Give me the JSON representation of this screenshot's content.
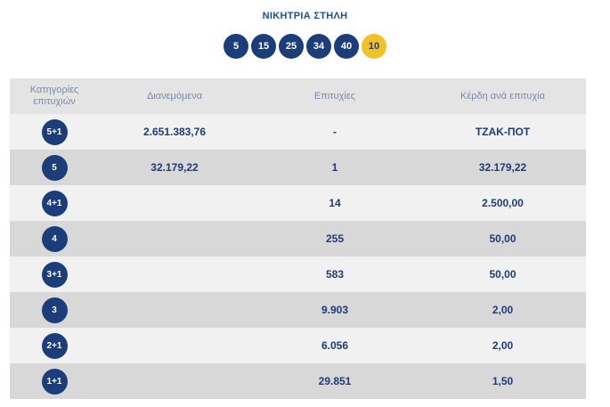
{
  "title": "ΝΙΚΗΤΡΙΑ ΣΤΗΛΗ",
  "balls": [
    "5",
    "15",
    "25",
    "34",
    "40"
  ],
  "bonus_ball": "10",
  "colors": {
    "ball": "#1b3d7a",
    "bonus": "#f2c028",
    "header_bg": "#e4e4e4",
    "row_light": "#f1f1f1",
    "row_dark": "#d8d8d8"
  },
  "table": {
    "headers": {
      "category": "Κατηγορίες επιτυχιών",
      "distributed": "Διανεμόμενα",
      "winners": "Επιτυχίες",
      "prize": "Κέρδη ανά επιτυχία"
    },
    "rows": [
      {
        "category": "5+1",
        "distributed": "2.651.383,76",
        "winners": "-",
        "prize": "ΤΖΑΚ-ΠΟΤ"
      },
      {
        "category": "5",
        "distributed": "32.179,22",
        "winners": "1",
        "prize": "32.179,22"
      },
      {
        "category": "4+1",
        "distributed": "",
        "winners": "14",
        "prize": "2.500,00"
      },
      {
        "category": "4",
        "distributed": "",
        "winners": "255",
        "prize": "50,00"
      },
      {
        "category": "3+1",
        "distributed": "",
        "winners": "583",
        "prize": "50,00"
      },
      {
        "category": "3",
        "distributed": "",
        "winners": "9.903",
        "prize": "2,00"
      },
      {
        "category": "2+1",
        "distributed": "",
        "winners": "6.056",
        "prize": "2,00"
      },
      {
        "category": "1+1",
        "distributed": "",
        "winners": "29.851",
        "prize": "1,50"
      }
    ]
  }
}
